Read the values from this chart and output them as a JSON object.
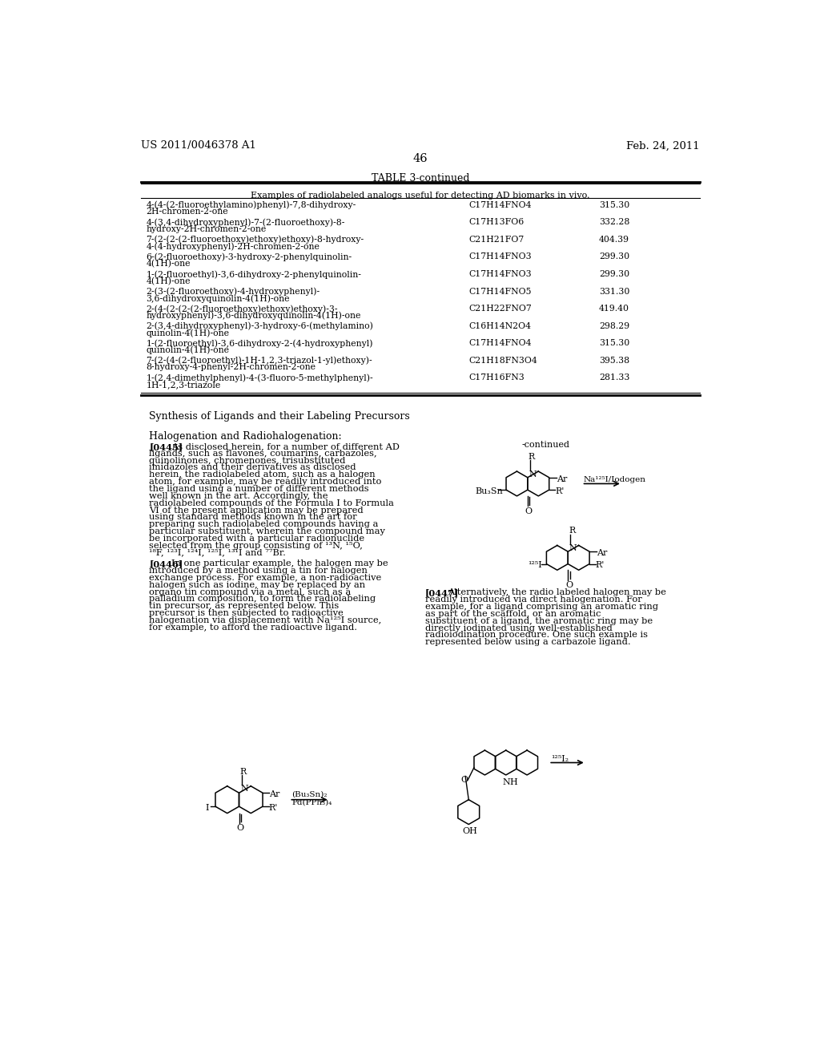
{
  "page_header_left": "US 2011/0046378 A1",
  "page_header_right": "Feb. 24, 2011",
  "page_number": "46",
  "table_title": "TABLE 3-continued",
  "table_subtitle": "Examples of radiolabeled analogs useful for detecting AD biomarks in vivo.",
  "table_rows": [
    [
      "4-(4-(2-fluoroethylamino)phenyl)-7,8-dihydroxy-\n2H-chromen-2-one",
      "C17H14FNO4",
      "315.30"
    ],
    [
      "4-(3,4-dihydroxyphenyl)-7-(2-fluoroethoxy)-8-\nhydroxy-2H-chromen-2-one",
      "C17H13FO6",
      "332.28"
    ],
    [
      "7-(2-(2-(2-fluoroethoxy)ethoxy)ethoxy)-8-hydroxy-\n4-(4-hydroxyphenyl)-2H-chromen-2-one",
      "C21H21FO7",
      "404.39"
    ],
    [
      "6-(2-fluoroethoxy)-3-hydroxy-2-phenylquinolin-\n4(1H)-one",
      "C17H14FNO3",
      "299.30"
    ],
    [
      "1-(2-fluoroethyl)-3,6-dihydroxy-2-phenylquinolin-\n4(1H)-one",
      "C17H14FNO3",
      "299.30"
    ],
    [
      "2-(3-(2-fluoroethoxy)-4-hydroxyphenyl)-\n3,6-dihydroxyquinolin-4(1H)-one",
      "C17H14FNO5",
      "331.30"
    ],
    [
      "2-(4-(2-(2-(2-fluoroethoxy)ethoxy)ethoxy)-3-\nhydroxyphenyl)-3,6-dihydroxyquinolin-4(1H)-one",
      "C21H22FNO7",
      "419.40"
    ],
    [
      "2-(3,4-dihydroxyphenyl)-3-hydroxy-6-(methylamino)\nquinolin-4(1H)-one",
      "C16H14N2O4",
      "298.29"
    ],
    [
      "1-(2-fluoroethyl)-3,6-dihydroxy-2-(4-hydroxyphenyl)\nquinolin-4(1H)-one",
      "C17H14FNO4",
      "315.30"
    ],
    [
      "7-(2-(4-(2-fluoroethyl)-1H-1,2,3-triazol-1-yl)ethoxy)-\n8-hydroxy-4-phenyl-2H-chromen-2-one",
      "C21H18FN3O4",
      "395.38"
    ],
    [
      "1-(2,4-dimethylphenyl)-4-(3-fluoro-5-methylphenyl)-\n1H-1,2,3-triazole",
      "C17H16FN3",
      "281.33"
    ]
  ],
  "section_heading": "Synthesis of Ligands and their Labeling Precursors",
  "sub_heading": "Halogenation and Radiohalogenation:",
  "para_0445_label": "[0445]",
  "para_0445_text": "As disclosed herein, for a number of different AD ligands, such as flavones, coumarins, carbazoles, quinolinones, chromenones, trisubstituted imidazoles and their derivatives as disclosed herein, the radiolabeled atom, such as a halogen atom, for example, may be readily introduced into the ligand using a number of different methods well known in the art. Accordingly, the radiolabeled compounds of the Formula I to Formula VI of the present application may be prepared using standard methods known in the art for preparing such radiolabeled compounds having a particular substituent, wherein the compound may be incorporated with a particular radionuclide selected from the group consisting of ¹³N, ¹⁵O, ¹⁸F, ¹²³I, ¹²⁴I, ¹²⁵I, ¹³¹I and ⁷⁷Br.",
  "para_0446_label": "[0446]",
  "para_0446_text": "In one particular example, the halogen may be introduced by a method using a tin for halogen exchange process. For example, a non-radioactive halogen such as iodine, may be replaced by an organo tin compound via a metal, such as a palladium composition, to form the radiolabeling tin precursor, as represented below. This precursor is then subjected to radioactive halogenation via displacement with Na¹²⁵I source, for example, to afford the radioactive ligand.",
  "para_0447_label": "[0447]",
  "para_0447_text": "Alternatively, the radio labeled halogen may be readily introduced via direct halogenation. For example, for a ligand comprising an aromatic ring as part of the scaffold, or an aromatic substituent of a ligand, the aromatic ring may be directly iodinated using well-established radioiodination procedure. One such example is represented below using a carbazole ligand.",
  "background_color": "#ffffff"
}
